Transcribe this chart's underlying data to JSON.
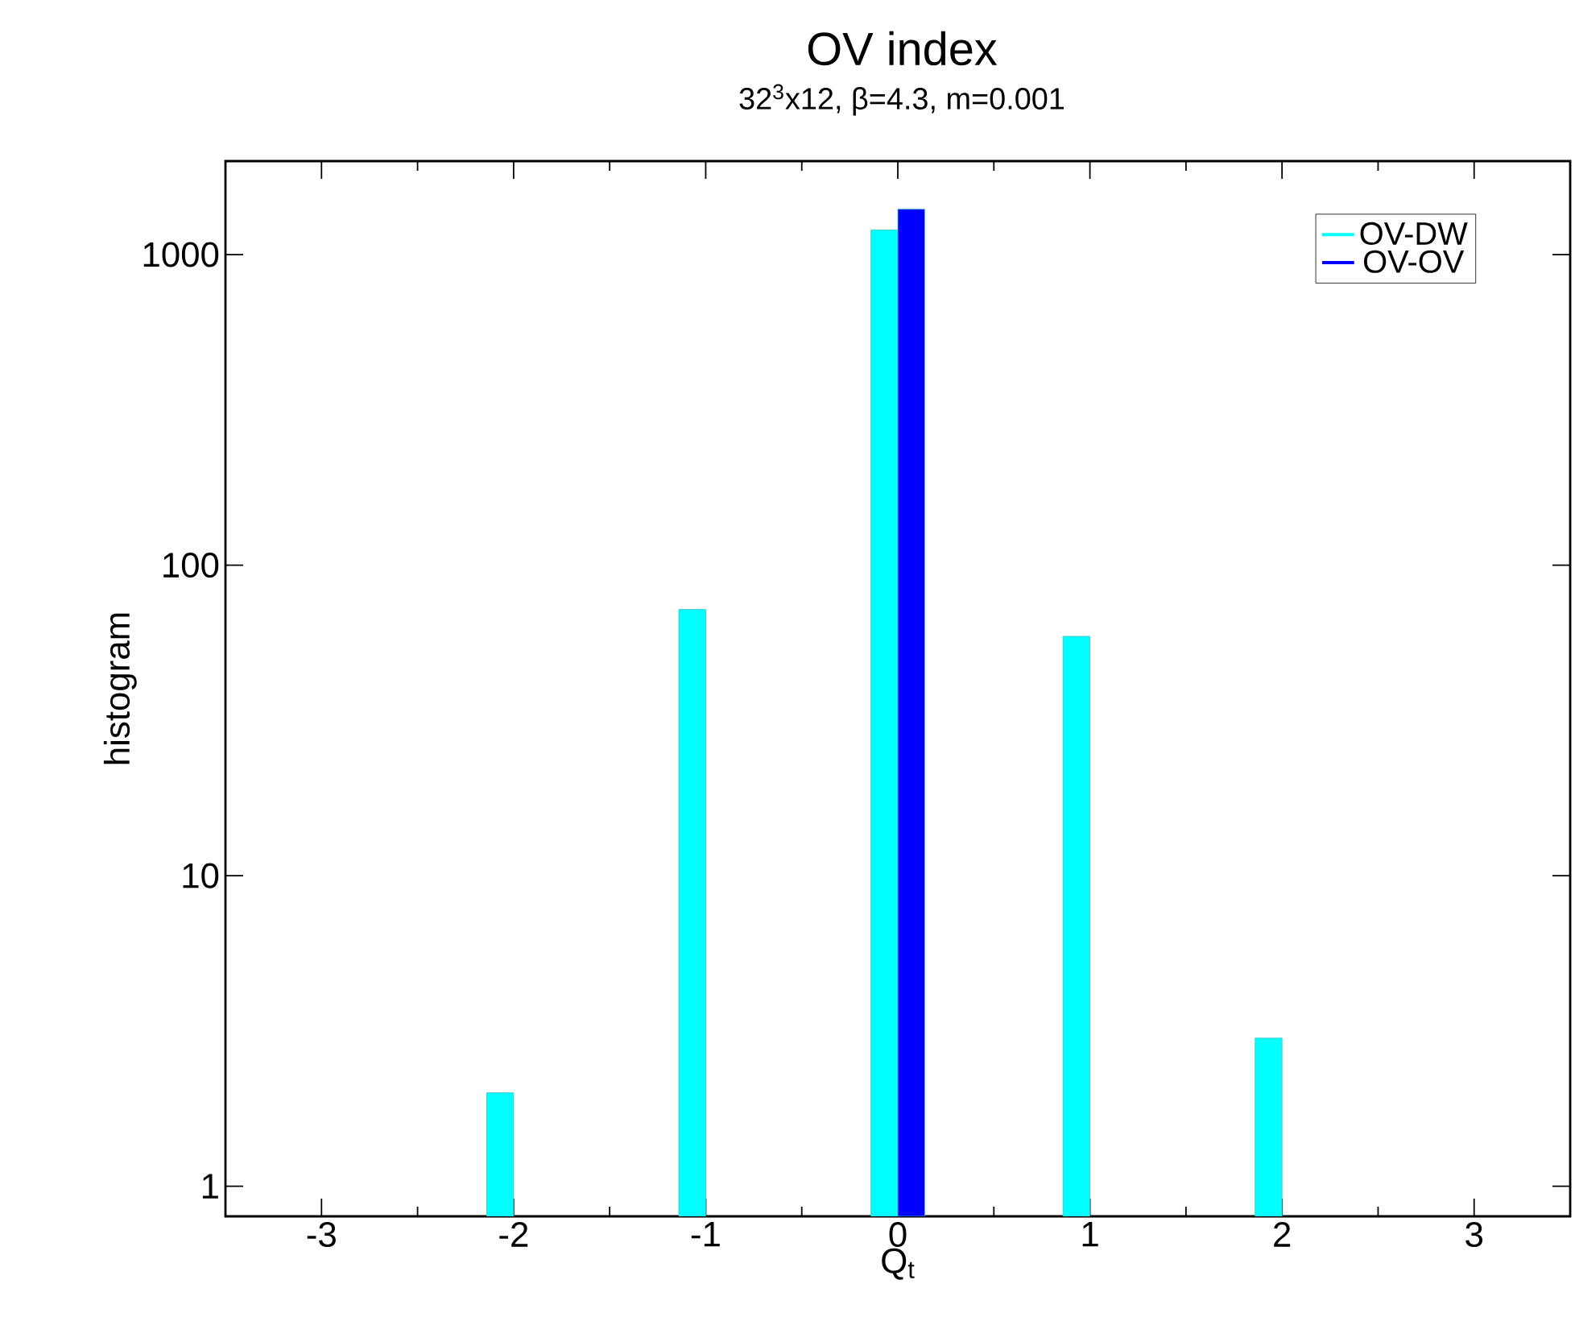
{
  "chart_data": {
    "type": "bar",
    "title": "OV index",
    "subtitle": "32$^{3}$x12, β=4.3, m=0.001",
    "xlabel": "Q$_{t}$",
    "ylabel": "histogram",
    "x": [
      -2,
      -1,
      0,
      1,
      2
    ],
    "series": [
      {
        "name": "OV-DW",
        "color": "#00ffff",
        "values": [
          2,
          72,
          1200,
          59,
          3
        ]
      },
      {
        "name": "OV-OV",
        "color": "#0000ff",
        "values": [
          null,
          null,
          1400,
          null,
          null
        ]
      }
    ],
    "log": "y",
    "xlim": [
      -3.5,
      3.5
    ],
    "ylim": [
      0.8,
      2000
    ],
    "xticks": [
      -3,
      -2,
      -1,
      0,
      1,
      2,
      3
    ],
    "yticks": [
      1,
      10,
      100,
      1000
    ],
    "grid": false,
    "legend": "top right"
  }
}
